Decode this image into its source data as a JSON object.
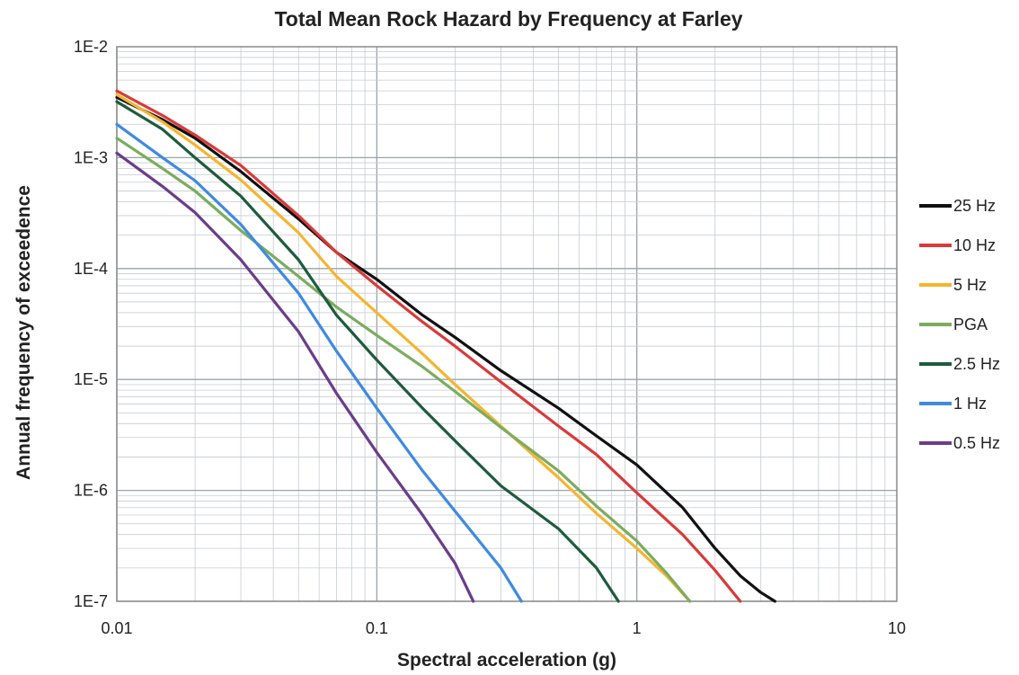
{
  "chart_data": {
    "type": "line",
    "title": "Total Mean Rock Hazard by Frequency at Farley",
    "xlabel": "Spectral acceleration (g)",
    "ylabel": "Annual frequency of exceedence",
    "x_scale": "log",
    "y_scale": "log",
    "xlim": [
      0.01,
      10
    ],
    "ylim": [
      1e-07,
      0.01
    ],
    "x_ticks": [
      0.01,
      0.1,
      1,
      10
    ],
    "x_tick_labels": [
      "0.01",
      "0.1",
      "1",
      "10"
    ],
    "y_ticks": [
      0.01,
      0.001,
      0.0001,
      1e-05,
      1e-06,
      1e-07
    ],
    "y_tick_labels": [
      "1E-2",
      "1E-3",
      "1E-4",
      "1E-5",
      "1E-6",
      "1E-7"
    ],
    "grid": true,
    "legend_position": "right",
    "series": [
      {
        "name": "25 Hz",
        "color": "#111111",
        "points": [
          [
            0.01,
            0.0035
          ],
          [
            0.015,
            0.0022
          ],
          [
            0.02,
            0.0015
          ],
          [
            0.03,
            0.00075
          ],
          [
            0.05,
            0.00028
          ],
          [
            0.07,
            0.00014
          ],
          [
            0.1,
            8e-05
          ],
          [
            0.15,
            3.8e-05
          ],
          [
            0.2,
            2.4e-05
          ],
          [
            0.3,
            1.2e-05
          ],
          [
            0.5,
            5.5e-06
          ],
          [
            0.7,
            3.1e-06
          ],
          [
            1.0,
            1.7e-06
          ],
          [
            1.5,
            7e-07
          ],
          [
            2.0,
            3e-07
          ],
          [
            2.5,
            1.7e-07
          ],
          [
            3.0,
            1.2e-07
          ],
          [
            3.4,
            1e-07
          ]
        ]
      },
      {
        "name": "10 Hz",
        "color": "#d93a3a",
        "points": [
          [
            0.01,
            0.004
          ],
          [
            0.015,
            0.0024
          ],
          [
            0.02,
            0.0016
          ],
          [
            0.03,
            0.00085
          ],
          [
            0.05,
            0.0003
          ],
          [
            0.07,
            0.00014
          ],
          [
            0.1,
            7e-05
          ],
          [
            0.15,
            3.3e-05
          ],
          [
            0.2,
            2e-05
          ],
          [
            0.3,
            9.5e-06
          ],
          [
            0.5,
            3.8e-06
          ],
          [
            0.7,
            2.1e-06
          ],
          [
            1.0,
            9.5e-07
          ],
          [
            1.5,
            4e-07
          ],
          [
            2.0,
            1.9e-07
          ],
          [
            2.5,
            1e-07
          ]
        ]
      },
      {
        "name": "5 Hz",
        "color": "#f4b530",
        "points": [
          [
            0.01,
            0.0037
          ],
          [
            0.015,
            0.0021
          ],
          [
            0.02,
            0.0013
          ],
          [
            0.03,
            0.00063
          ],
          [
            0.05,
            0.00021
          ],
          [
            0.07,
            8.5e-05
          ],
          [
            0.1,
            4e-05
          ],
          [
            0.15,
            1.7e-05
          ],
          [
            0.2,
            9e-06
          ],
          [
            0.3,
            3.8e-06
          ],
          [
            0.5,
            1.3e-06
          ],
          [
            0.7,
            6.2e-07
          ],
          [
            1.0,
            3e-07
          ],
          [
            1.3,
            1.7e-07
          ],
          [
            1.6,
            1e-07
          ]
        ]
      },
      {
        "name": "PGA",
        "color": "#7bac5f",
        "points": [
          [
            0.01,
            0.0015
          ],
          [
            0.015,
            0.0008
          ],
          [
            0.02,
            0.0005
          ],
          [
            0.03,
            0.00022
          ],
          [
            0.05,
            8.5e-05
          ],
          [
            0.07,
            4.5e-05
          ],
          [
            0.1,
            2.5e-05
          ],
          [
            0.15,
            1.3e-05
          ],
          [
            0.2,
            7.8e-06
          ],
          [
            0.3,
            3.7e-06
          ],
          [
            0.5,
            1.5e-06
          ],
          [
            0.7,
            7.2e-07
          ],
          [
            1.0,
            3.5e-07
          ],
          [
            1.3,
            1.8e-07
          ],
          [
            1.6,
            1e-07
          ]
        ]
      },
      {
        "name": "2.5 Hz",
        "color": "#1e5b3c",
        "points": [
          [
            0.01,
            0.0032
          ],
          [
            0.015,
            0.0018
          ],
          [
            0.02,
            0.001
          ],
          [
            0.03,
            0.00045
          ],
          [
            0.05,
            0.00012
          ],
          [
            0.07,
            3.8e-05
          ],
          [
            0.1,
            1.5e-05
          ],
          [
            0.15,
            5.5e-06
          ],
          [
            0.2,
            2.8e-06
          ],
          [
            0.3,
            1.1e-06
          ],
          [
            0.5,
            4.5e-07
          ],
          [
            0.7,
            2e-07
          ],
          [
            0.85,
            1e-07
          ]
        ]
      },
      {
        "name": "1 Hz",
        "color": "#3f8ae0",
        "points": [
          [
            0.01,
            0.002
          ],
          [
            0.015,
            0.001
          ],
          [
            0.02,
            0.00062
          ],
          [
            0.03,
            0.00025
          ],
          [
            0.05,
            6e-05
          ],
          [
            0.07,
            1.8e-05
          ],
          [
            0.1,
            5.5e-06
          ],
          [
            0.15,
            1.5e-06
          ],
          [
            0.2,
            6.5e-07
          ],
          [
            0.3,
            2e-07
          ],
          [
            0.36,
            1e-07
          ]
        ]
      },
      {
        "name": "0.5 Hz",
        "color": "#6a3d8a",
        "points": [
          [
            0.01,
            0.0011
          ],
          [
            0.015,
            0.00055
          ],
          [
            0.02,
            0.00032
          ],
          [
            0.03,
            0.00012
          ],
          [
            0.05,
            2.7e-05
          ],
          [
            0.07,
            7.5e-06
          ],
          [
            0.1,
            2.2e-06
          ],
          [
            0.15,
            6e-07
          ],
          [
            0.2,
            2.2e-07
          ],
          [
            0.235,
            1e-07
          ]
        ]
      }
    ]
  }
}
